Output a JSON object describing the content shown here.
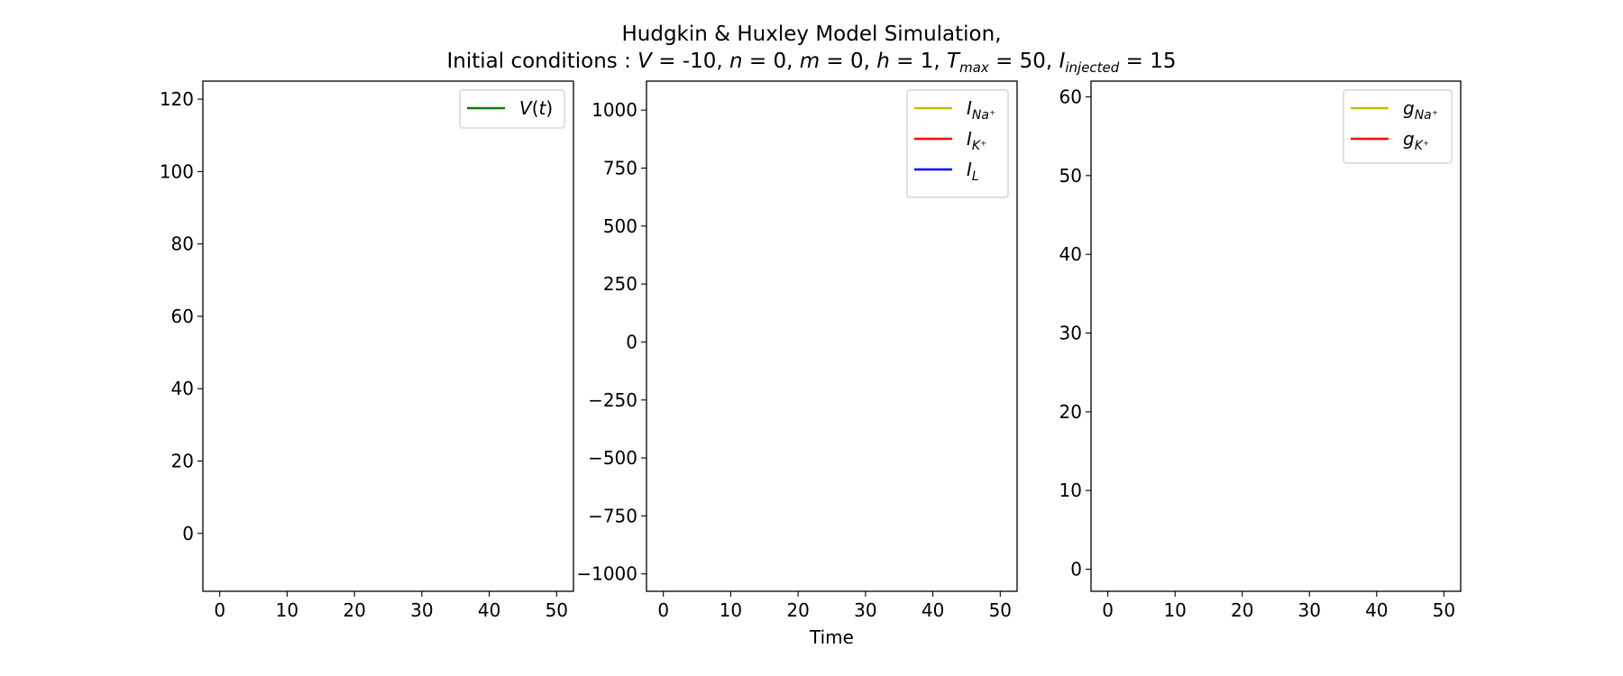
{
  "figure": {
    "title_line1": "Hudgkin & Huxley Model Simulation,",
    "title_line2": {
      "prefix": "Initial conditions : ",
      "V_sym": "V",
      "V_val": " = -10, ",
      "n_sym": "n",
      "n_val": " = 0, ",
      "m_sym": "m",
      "m_val": " = 0, ",
      "h_sym": "h",
      "h_val": " = 1, ",
      "T_sym": "T",
      "T_sub": "max",
      "T_val": " = 50, ",
      "I_sym": "I",
      "I_sub": "injected",
      "I_val": " = 15"
    },
    "xlabel": "Time"
  },
  "chart_data": [
    {
      "type": "line",
      "xlim": [
        -2.5,
        52.5
      ],
      "ylim": [
        -16,
        125
      ],
      "xticks": [
        0,
        10,
        20,
        30,
        40,
        50
      ],
      "yticks": [
        0,
        20,
        40,
        60,
        80,
        100,
        120
      ],
      "ytick_labels": [
        "0",
        "20",
        "40",
        "60",
        "80",
        "100",
        "120"
      ],
      "legend_position": "top-right",
      "series": [
        {
          "name_base": "V",
          "name_suffix": "(t)",
          "color": "#008000",
          "x": [],
          "y": []
        }
      ]
    },
    {
      "type": "line",
      "xlim": [
        -2.5,
        52.5
      ],
      "ylim": [
        -1075,
        1125
      ],
      "xticks": [
        0,
        10,
        20,
        30,
        40,
        50
      ],
      "yticks": [
        -1000,
        -750,
        -500,
        -250,
        0,
        250,
        500,
        750,
        1000
      ],
      "ytick_labels": [
        "−1000",
        "−750",
        "−500",
        "−250",
        "0",
        "250",
        "500",
        "750",
        "1000"
      ],
      "legend_position": "top-right",
      "series": [
        {
          "name_base": "I",
          "name_sub": "Na⁺",
          "color": "#bfbf00",
          "x": [],
          "y": []
        },
        {
          "name_base": "I",
          "name_sub": "K⁺",
          "color": "#ff0000",
          "x": [],
          "y": []
        },
        {
          "name_base": "I",
          "name_sub": "L",
          "color": "#0000ff",
          "x": [],
          "y": []
        }
      ]
    },
    {
      "type": "line",
      "xlim": [
        -2.5,
        52.5
      ],
      "ylim": [
        -2.8,
        62
      ],
      "xticks": [
        0,
        10,
        20,
        30,
        40,
        50
      ],
      "yticks": [
        0,
        10,
        20,
        30,
        40,
        50,
        60
      ],
      "ytick_labels": [
        "0",
        "10",
        "20",
        "30",
        "40",
        "50",
        "60"
      ],
      "legend_position": "top-right",
      "series": [
        {
          "name_base": "g",
          "name_sub": "Na⁺",
          "color": "#bfbf00",
          "x": [],
          "y": []
        },
        {
          "name_base": "g",
          "name_sub": "K⁺",
          "color": "#ff0000",
          "x": [],
          "y": []
        }
      ]
    }
  ]
}
